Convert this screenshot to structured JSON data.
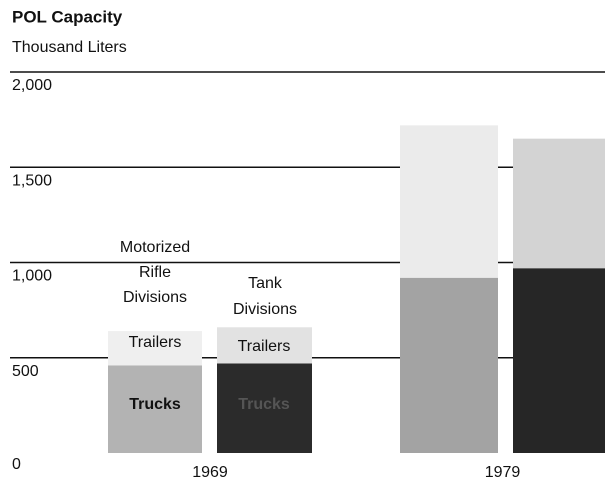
{
  "chart_data": {
    "type": "stacked-bar",
    "title": "POL Capacity",
    "subtitle": "Thousand Liters",
    "categories": [
      "1969",
      null,
      "1979",
      null
    ],
    "series": [
      {
        "name": "Trucks",
        "colors": [
          "#b3b3b3",
          "#2b2b2b",
          "#a3a3a3",
          "#262626"
        ],
        "values": [
          460,
          470,
          920,
          970
        ]
      },
      {
        "name": "Trailers",
        "colors": [
          "#efefef",
          "#e2e2e2",
          "#ebebeb",
          "#d3d3d3"
        ],
        "values": [
          180,
          190,
          800,
          680
        ]
      }
    ],
    "annotations": [
      "Motorized",
      "Rifle",
      "Divisions",
      "Tank",
      "Divisions"
    ],
    "ylim": [
      0,
      2000
    ],
    "yticks": [
      0,
      {
        "value": 500,
        "label": "500"
      },
      {
        "value": 1000,
        "label": "1,000"
      },
      {
        "value": 1500,
        "label": "1,500"
      },
      {
        "value": 2000,
        "label": "2,000"
      }
    ],
    "grid": true
  }
}
